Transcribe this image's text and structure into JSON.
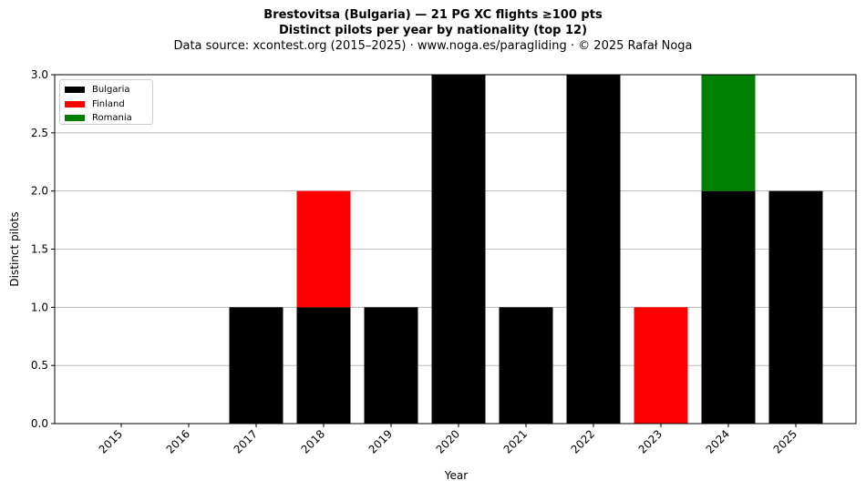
{
  "title": {
    "line1": "Brestovitsa (Bulgaria)  —  21 PG XC flights ≥100 pts",
    "line2": "Distinct pilots per year by nationality (top 12)",
    "line3": "Data source: xcontest.org (2015–2025)  ·  www.noga.es/paragliding  ·  © 2025 Rafał Noga"
  },
  "chart_data": {
    "type": "bar",
    "stacked": true,
    "categories": [
      "2015",
      "2016",
      "2017",
      "2018",
      "2019",
      "2020",
      "2021",
      "2022",
      "2023",
      "2024",
      "2025"
    ],
    "series": [
      {
        "name": "Bulgaria",
        "color": "#000000",
        "values": [
          0,
          0,
          1,
          1,
          1,
          3,
          1,
          3,
          0,
          2,
          2
        ]
      },
      {
        "name": "Finland",
        "color": "#ff0000",
        "values": [
          0,
          0,
          0,
          1,
          0,
          0,
          0,
          0,
          1,
          0,
          0
        ]
      },
      {
        "name": "Romania",
        "color": "#008000",
        "values": [
          0,
          0,
          0,
          0,
          0,
          0,
          0,
          0,
          0,
          1,
          0
        ]
      }
    ],
    "xlabel": "Year",
    "ylabel": "Distinct pilots",
    "ylim": [
      0,
      3
    ],
    "yticks": [
      "0.0",
      "0.5",
      "1.0",
      "1.5",
      "2.0",
      "2.5",
      "3.0"
    ],
    "grid": "y",
    "legend_position": "top-left"
  }
}
